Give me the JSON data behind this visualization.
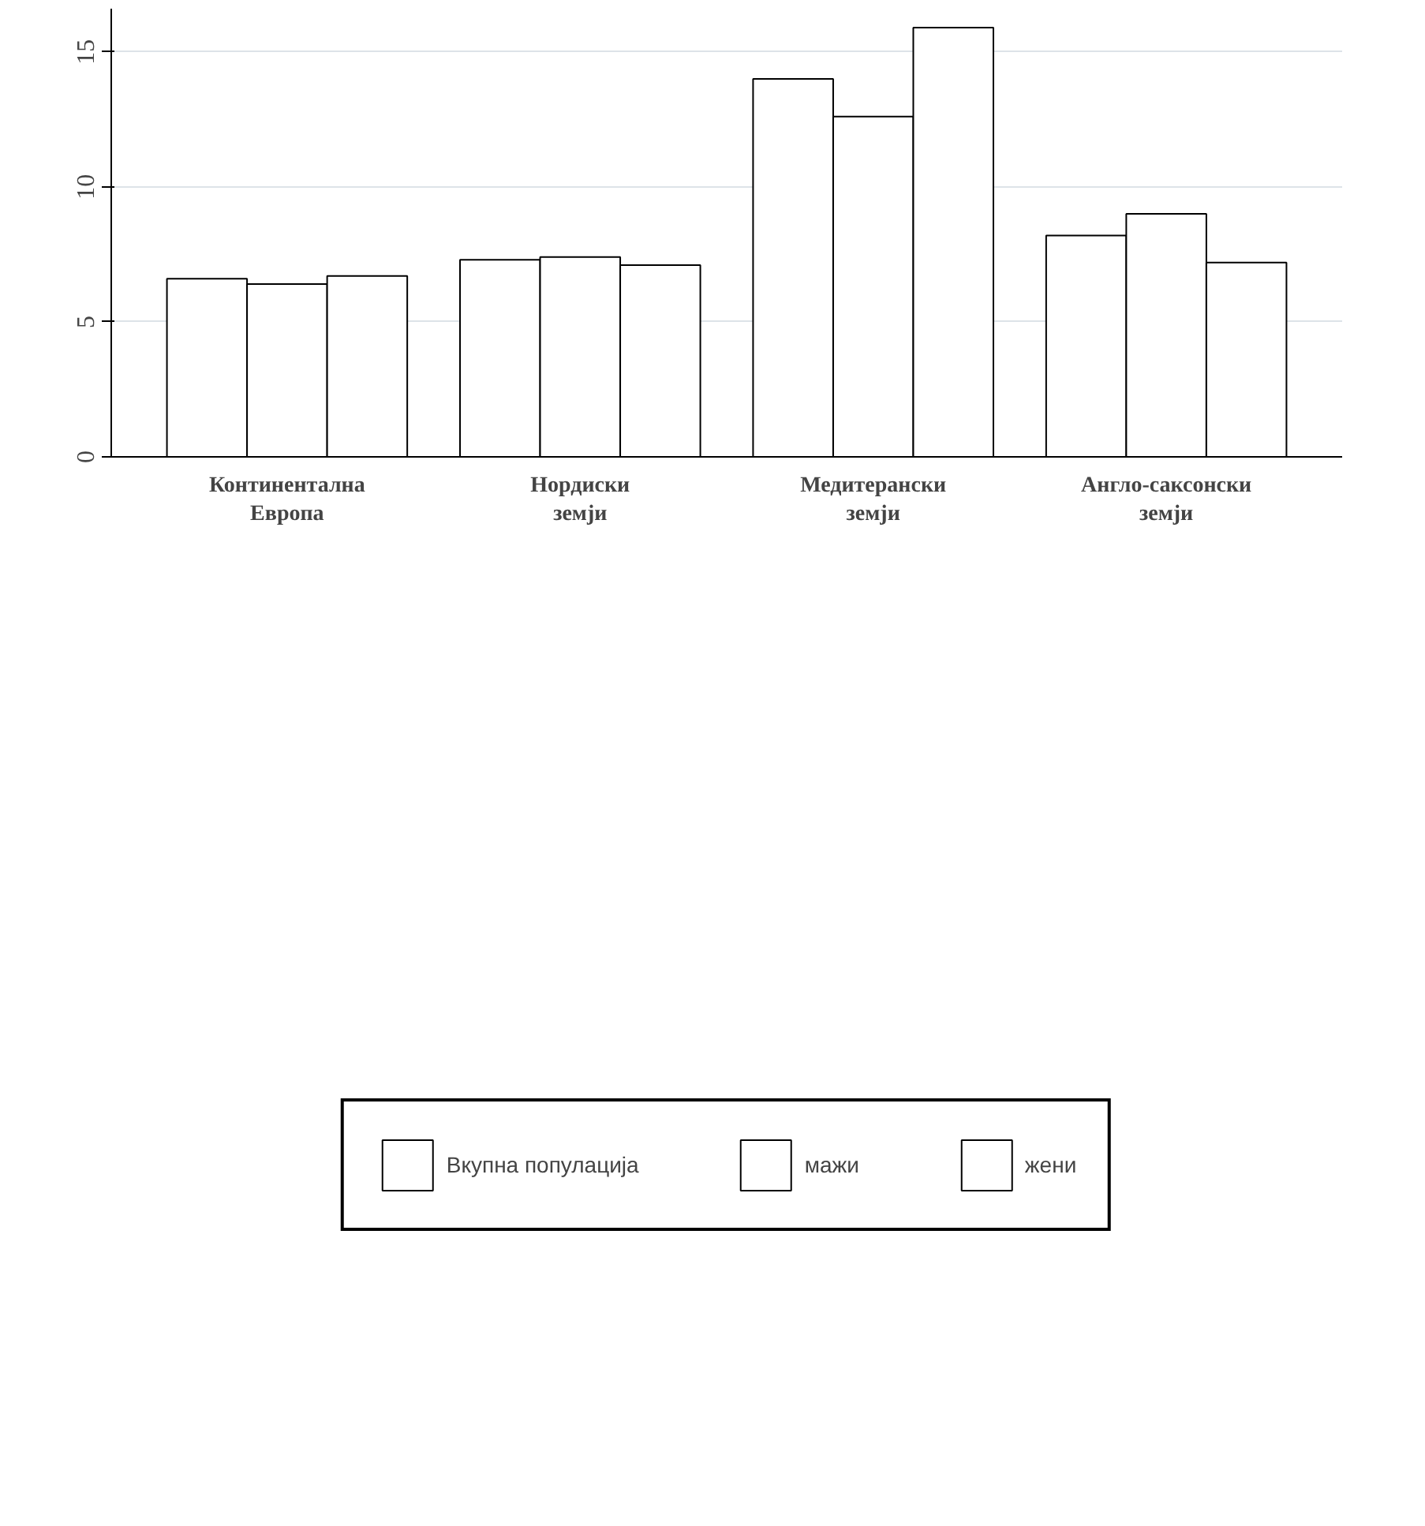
{
  "chart_data": {
    "type": "bar",
    "categories": [
      "Континентална Европа",
      "Нордиски земји",
      "Медитерански земји",
      "Англо-саксонски земји"
    ],
    "series": [
      {
        "name": "Вкупна популација",
        "color": "#ffffff",
        "values": [
          6.6,
          7.3,
          14.0,
          8.2
        ]
      },
      {
        "name": "мажи",
        "color": "#ffffff",
        "values": [
          6.4,
          7.4,
          12.6,
          9.0
        ]
      },
      {
        "name": "жени",
        "color": "#ffffff",
        "values": [
          6.7,
          7.1,
          15.9,
          7.2
        ]
      }
    ],
    "ylim": [
      0,
      16.6
    ],
    "yticks": [
      0,
      5,
      10,
      15
    ],
    "grid": "y",
    "legend": "bottom"
  }
}
